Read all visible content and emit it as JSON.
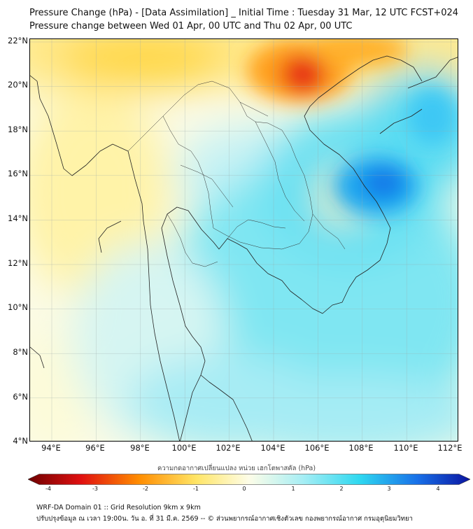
{
  "title_line1": "Pressure Change (hPa) - [Data Assimilation] _ Initial Time : Tuesday 31 Mar, 12 UTC FCST+024",
  "title_line2": "Pressure change between Wed 01 Apr, 00 UTC and Thu 02 Apr, 00 UTC",
  "lat_labels": [
    "22°N",
    "20°N",
    "18°N",
    "16°N",
    "14°N",
    "12°N",
    "10°N",
    "8°N",
    "6°N",
    "4°N"
  ],
  "lon_labels": [
    "94°E",
    "96°E",
    "98°E",
    "100°E",
    "102°E",
    "104°E",
    "106°E",
    "108°E",
    "110°E",
    "112°E"
  ],
  "colorbar_title": "ความกดอากาศเปลี่ยนแปลง หน่วย เฮกโตพาสคัล (hPa)",
  "colorbar_ticks": [
    "-4",
    "-3",
    "-2",
    "-1",
    "0",
    "1",
    "2",
    "3",
    "4"
  ],
  "footer_line1": "WRF-DA Domain 01 :: Grid Resolution 9km x 9km",
  "footer_line2": "ปรับปรุงข้อมูล ณ เวลา 19:00น. วัน อ. ที่ 31 มี.ค. 2569 -- © ส่วนพยากรณ์อากาศเชิงตัวเลข กองพยากรณ์อากาศ กรมอุตุนิยมวิทยา",
  "colors": {
    "negative_strong": "#c81414",
    "negative_mid": "#ff8c00",
    "negative_weak": "#ffe566",
    "neutral": "#fdfde8",
    "positive_weak": "#b4f0f4",
    "positive_mid": "#2ed8f0",
    "positive_strong": "#1870e8"
  }
}
